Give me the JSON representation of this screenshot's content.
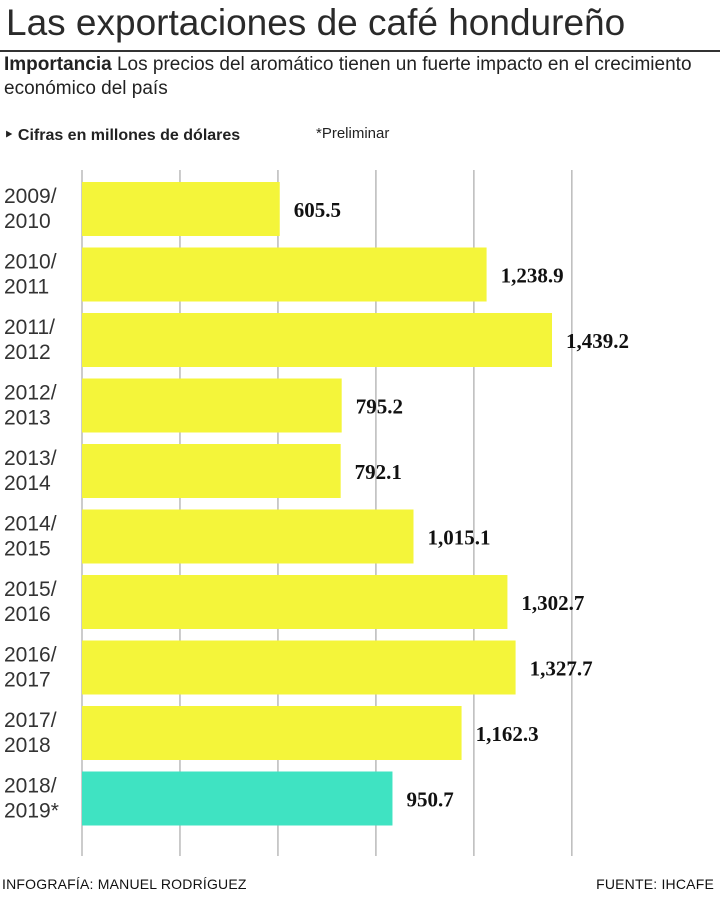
{
  "header": {
    "title": "Las exportaciones de café hondureño",
    "subtitle_lead": "Importancia",
    "subtitle_text": "Los precios del aromático tienen un fuerte impacto en el crecimiento económico del país"
  },
  "notes": {
    "units": "‣ Cifras en millones de dólares",
    "preliminary": "*Preliminar"
  },
  "footer": {
    "credit": "INFOGRAFÍA: MANUEL RODRÍGUEZ",
    "source": "FUENTE: IHCAFE"
  },
  "colors": {
    "bar": "#f4f53a",
    "bar_preliminary": "#3fe3c2",
    "grid": "#b0b0b0"
  },
  "chart_data": {
    "type": "bar",
    "orientation": "horizontal",
    "categories": [
      [
        "2009/",
        "2010"
      ],
      [
        "2010/",
        "2011"
      ],
      [
        "2011/",
        "2012"
      ],
      [
        "2012/",
        "2013"
      ],
      [
        "2013/",
        "2014"
      ],
      [
        "2014/",
        "2015"
      ],
      [
        "2015/",
        "2016"
      ],
      [
        "2016/",
        "2017"
      ],
      [
        "2017/",
        "2018"
      ],
      [
        "2018/",
        "2019*"
      ]
    ],
    "values": [
      605.5,
      1238.9,
      1439.2,
      795.2,
      792.1,
      1015.1,
      1302.7,
      1327.7,
      1162.3,
      950.7
    ],
    "value_labels": [
      "605.5",
      "1,238.9",
      "1,439.2",
      "795.2",
      "792.1",
      "1,015.1",
      "1,302.7",
      "1,327.7",
      "1,162.3",
      "950.7"
    ],
    "preliminary_index": 9,
    "xlim": [
      0,
      1500
    ],
    "grid": true
  }
}
